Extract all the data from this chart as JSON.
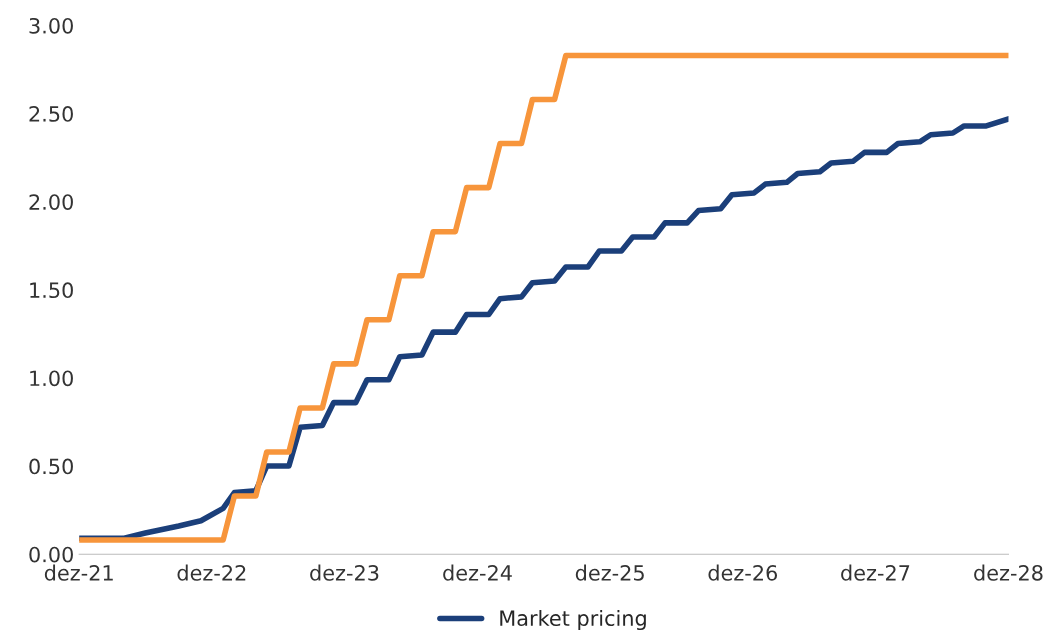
{
  "chart_data": {
    "type": "line",
    "xlim": [
      "2021-12",
      "2028-12"
    ],
    "xticks": [
      {
        "value": "2021-12",
        "label": "dez-21"
      },
      {
        "value": "2022-12",
        "label": "dez-22"
      },
      {
        "value": "2023-12",
        "label": "dez-23"
      },
      {
        "value": "2024-12",
        "label": "dez-24"
      },
      {
        "value": "2025-12",
        "label": "dez-25"
      },
      {
        "value": "2026-12",
        "label": "dez-26"
      },
      {
        "value": "2027-12",
        "label": "dez-27"
      },
      {
        "value": "2028-12",
        "label": "dez-28"
      }
    ],
    "ylim": [
      0,
      3
    ],
    "yticks": [
      {
        "value": 0,
        "label": "0.00"
      },
      {
        "value": 0.5,
        "label": "0.50"
      },
      {
        "value": 1,
        "label": "1.00"
      },
      {
        "value": 1.5,
        "label": "1.50"
      },
      {
        "value": 2,
        "label": "2.00"
      },
      {
        "value": 2.5,
        "label": "2.50"
      },
      {
        "value": 3,
        "label": "3.00"
      }
    ],
    "grid": false,
    "legend": "bottom",
    "line_style": "solid",
    "marker": "none",
    "series": [
      {
        "name": "Market pricing",
        "color": "#1b3f7a",
        "x": [
          "2021-12",
          "2022-04",
          "2022-06",
          "2022-09",
          "2022-11",
          "2023-01",
          "2023-02",
          "2023-04",
          "2023-05",
          "2023-07",
          "2023-08",
          "2023-10",
          "2023-11",
          "2024-01",
          "2024-02",
          "2024-04",
          "2024-05",
          "2024-07",
          "2024-08",
          "2024-10",
          "2024-11",
          "2025-01",
          "2025-02",
          "2025-04",
          "2025-05",
          "2025-07",
          "2025-08",
          "2025-10",
          "2025-11",
          "2026-01",
          "2026-02",
          "2026-04",
          "2026-05",
          "2026-07",
          "2026-08",
          "2026-10",
          "2026-11",
          "2027-01",
          "2027-02",
          "2027-04",
          "2027-05",
          "2027-07",
          "2027-08",
          "2027-10",
          "2027-11",
          "2028-01",
          "2028-02",
          "2028-04",
          "2028-05",
          "2028-07",
          "2028-08",
          "2028-10",
          "2028-12"
        ],
        "values": [
          0.09,
          0.09,
          0.12,
          0.16,
          0.19,
          0.26,
          0.35,
          0.36,
          0.5,
          0.5,
          0.72,
          0.73,
          0.86,
          0.86,
          0.99,
          0.99,
          1.12,
          1.13,
          1.26,
          1.26,
          1.36,
          1.36,
          1.45,
          1.46,
          1.54,
          1.55,
          1.63,
          1.63,
          1.72,
          1.72,
          1.8,
          1.8,
          1.88,
          1.88,
          1.95,
          1.96,
          2.04,
          2.05,
          2.1,
          2.11,
          2.16,
          2.17,
          2.22,
          2.23,
          2.28,
          2.28,
          2.33,
          2.34,
          2.38,
          2.39,
          2.43,
          2.43,
          2.47
        ]
      },
      {
        "color": "#f7953b",
        "x": [
          "2021-12",
          "2023-01",
          "2023-02",
          "2023-04",
          "2023-05",
          "2023-07",
          "2023-08",
          "2023-10",
          "2023-11",
          "2024-01",
          "2024-02",
          "2024-04",
          "2024-05",
          "2024-07",
          "2024-08",
          "2024-10",
          "2024-11",
          "2025-01",
          "2025-02",
          "2025-04",
          "2025-05",
          "2025-07",
          "2025-08",
          "2028-12"
        ],
        "values": [
          0.08,
          0.08,
          0.33,
          0.33,
          0.58,
          0.58,
          0.83,
          0.83,
          1.08,
          1.08,
          1.33,
          1.33,
          1.58,
          1.58,
          1.83,
          1.83,
          2.08,
          2.08,
          2.33,
          2.33,
          2.58,
          2.58,
          2.83,
          2.83
        ]
      }
    ]
  }
}
